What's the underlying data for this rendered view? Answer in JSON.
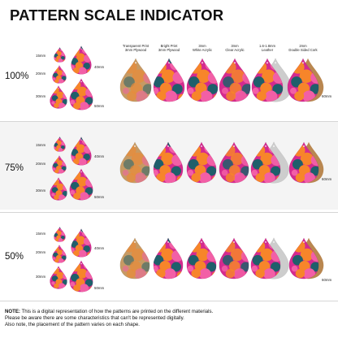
{
  "title": "PATTERN SCALE INDICATOR",
  "headers": [
    {
      "line1": "Transparent Print",
      "line2": "3mm Plywood"
    },
    {
      "line1": "Bright Print",
      "line2": "3mm Plywood"
    },
    {
      "line1": "3mm",
      "line2": "White Acrylic"
    },
    {
      "line1": "3mm",
      "line2": "Clear Acrylic"
    },
    {
      "line1": "1.6-1.8mm",
      "line2": "Leather"
    },
    {
      "line1": "2mm",
      "line2": "Double Sided Cork"
    }
  ],
  "size_labels": {
    "s15": "15mm",
    "s20": "20mm",
    "s30": "30mm",
    "s40": "40mm",
    "s50": "50mm",
    "s60": "60mm"
  },
  "scales": [
    {
      "label": "100%",
      "value": 100
    },
    {
      "label": "75%",
      "value": 75
    },
    {
      "label": "50%",
      "value": 50
    }
  ],
  "note": {
    "label": "NOTE:",
    "line1": "This is a digital representation of how the patterns are printed on the different materials.",
    "line2": "Please be aware there are some characteristics that can't be represented digitally.",
    "line3": "Also note, the placement of the pattern varies on each shape."
  },
  "colors": {
    "pattern_base": "#d42a8f",
    "pattern_orange": "#f7852a",
    "pattern_pink": "#f25fa6",
    "pattern_teal": "#1f5f6b",
    "plywood": "#c79a64",
    "leather": "#cdcdcd",
    "cork": "#b98750"
  }
}
